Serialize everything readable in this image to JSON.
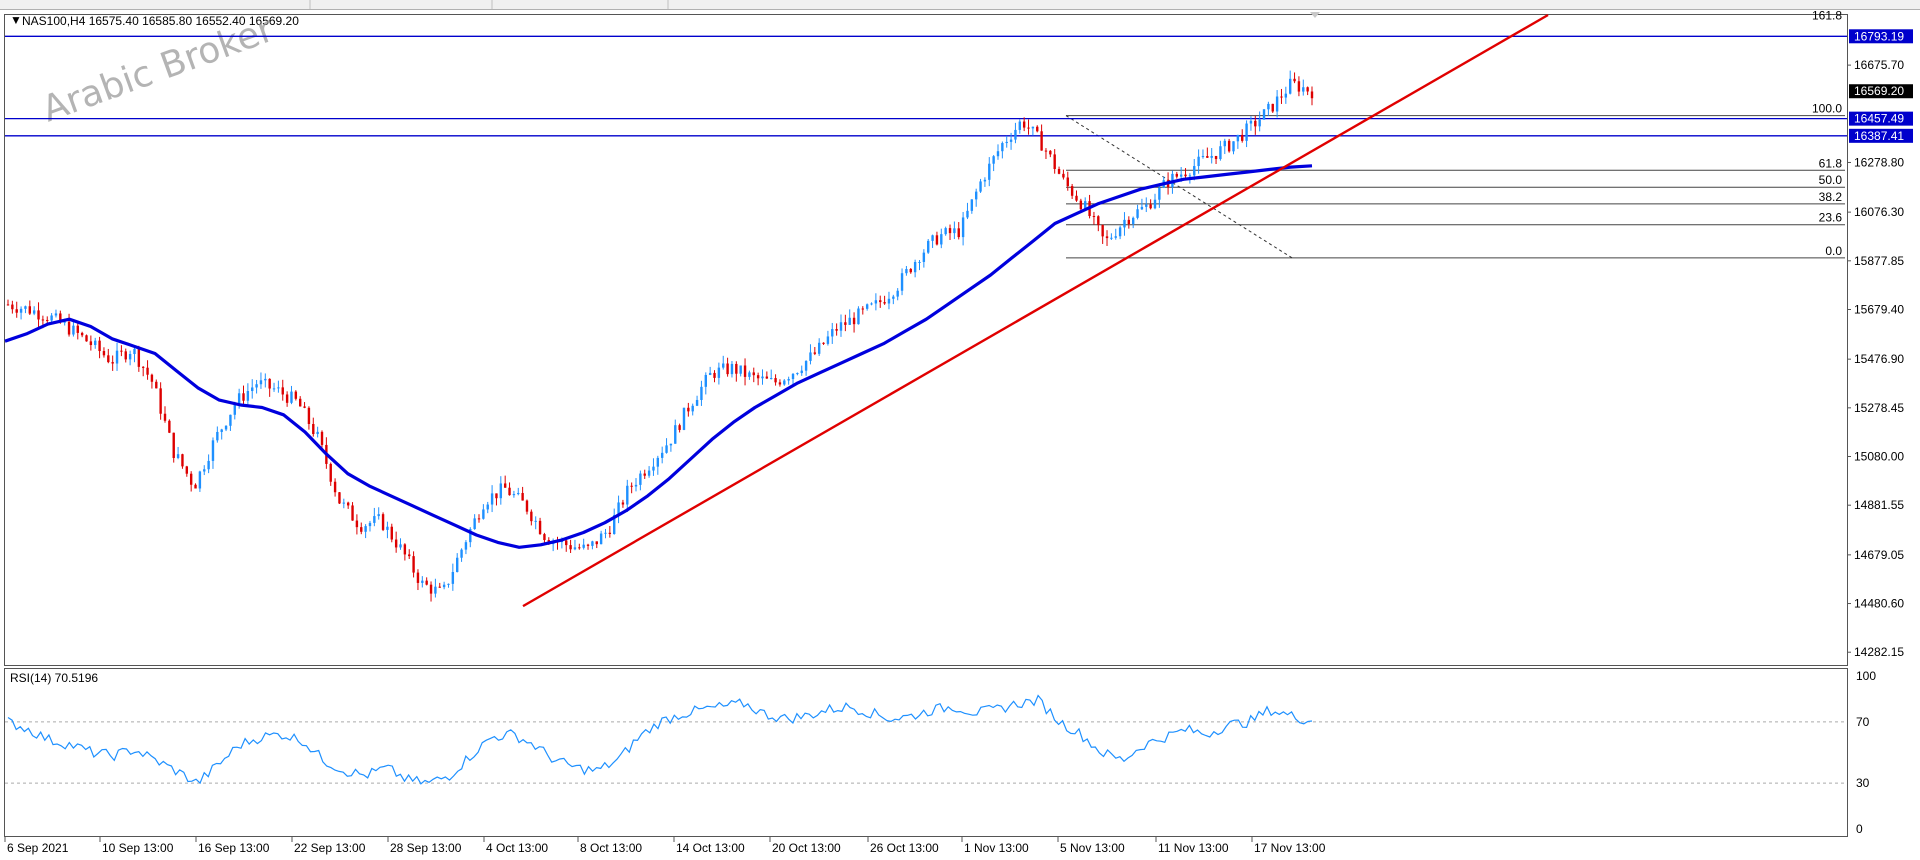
{
  "header": {
    "symbol_line": "NAS100,H4  16575.40 16585.80 16552.40 16569.20",
    "watermark": "Arabic Broker"
  },
  "price_axis": {
    "ticks": [
      "16675.70",
      "16278.80",
      "16076.30",
      "15877.85",
      "15679.40",
      "15476.90",
      "15278.45",
      "15080.00",
      "14881.55",
      "14679.05",
      "14480.60",
      "14282.15"
    ],
    "labels": [
      {
        "value": "16793.19",
        "price": 16793.19,
        "color": "#0000cc"
      },
      {
        "value": "16569.20",
        "price": 16569.2,
        "color": "#000000"
      },
      {
        "value": "16457.49",
        "price": 16457.49,
        "color": "#0000cc"
      },
      {
        "value": "16387.41",
        "price": 16387.41,
        "color": "#0000cc"
      }
    ],
    "range": [
      14230,
      16880
    ]
  },
  "fibonacci": {
    "levels": [
      {
        "label": "161.8",
        "price": 16850
      },
      {
        "label": "100.0",
        "price": 16470
      },
      {
        "label": "61.8",
        "price": 16247
      },
      {
        "label": "50.0",
        "price": 16178
      },
      {
        "label": "38.2",
        "price": 16110
      },
      {
        "label": "23.6",
        "price": 16025
      },
      {
        "label": "0.0",
        "price": 15890
      }
    ],
    "x_start_label": "5 Nov 13:00"
  },
  "horizontal_lines": [
    16793.19,
    16457.49,
    16387.41
  ],
  "rsi": {
    "label": "RSI(14) 70.5196",
    "axis": [
      "100",
      "70",
      "30",
      "0"
    ],
    "levels": [
      70,
      30
    ]
  },
  "time_axis": [
    "6 Sep 2021",
    "10 Sep 13:00",
    "16 Sep 13:00",
    "22 Sep 13:00",
    "28 Sep 13:00",
    "4 Oct 13:00",
    "8 Oct 13:00",
    "14 Oct 13:00",
    "20 Oct 13:00",
    "26 Oct 13:00",
    "1 Nov 13:00",
    "5 Nov 13:00",
    "11 Nov 13:00",
    "17 Nov 13:00"
  ],
  "colors": {
    "up": "#1e90ff",
    "down": "#dd0000",
    "ma": "#0000dd",
    "trend": "#e00000",
    "rsi": "#1e90ff",
    "hline": "#0000cc"
  },
  "chart_data": {
    "type": "line",
    "series": [
      {
        "name": "NAS100,H4",
        "values": [
          15700,
          15680,
          15650,
          15600,
          15540,
          15470,
          15520,
          15380,
          15100,
          14960,
          15150,
          15300,
          15380,
          15350,
          15300,
          15150,
          14900,
          14800,
          14820,
          14700,
          14560,
          14520,
          14720,
          14900,
          14950,
          14880,
          14750,
          14720,
          14700,
          14780,
          14950,
          15050,
          15150,
          15300,
          15420,
          15440,
          15400,
          15380,
          15430,
          15500,
          15600,
          15650,
          15700,
          15780,
          15900,
          15980,
          16000,
          16200,
          16350,
          16450,
          16350,
          16200,
          16100,
          15950,
          16050,
          16100,
          16200,
          16250,
          16300,
          16350,
          16420,
          16500,
          16600,
          16570
        ]
      },
      {
        "name": "MA",
        "values": [
          15550,
          15580,
          15620,
          15640,
          15610,
          15560,
          15530,
          15500,
          15430,
          15360,
          15310,
          15290,
          15280,
          15250,
          15180,
          15090,
          15010,
          14960,
          14920,
          14880,
          14840,
          14800,
          14760,
          14730,
          14710,
          14720,
          14740,
          14770,
          14810,
          14860,
          14920,
          14990,
          15070,
          15150,
          15220,
          15280,
          15330,
          15380,
          15420,
          15460,
          15500,
          15540,
          15590,
          15640,
          15700,
          15760,
          15820,
          15890,
          15960,
          16030,
          16070,
          16110,
          16140,
          16170,
          16190,
          16210,
          16220,
          16230,
          16240,
          16250,
          16260,
          16265
        ]
      },
      {
        "name": "RSI(14)",
        "values": [
          70,
          65,
          58,
          55,
          50,
          48,
          52,
          45,
          38,
          30,
          42,
          55,
          60,
          62,
          58,
          45,
          38,
          35,
          40,
          32,
          30,
          35,
          48,
          60,
          62,
          55,
          45,
          40,
          38,
          45,
          60,
          70,
          75,
          78,
          80,
          82,
          75,
          72,
          74,
          78,
          80,
          76,
          72,
          74,
          78,
          80,
          76,
          78,
          82,
          84,
          70,
          62,
          50,
          45,
          55,
          60,
          65,
          62,
          68,
          70,
          78,
          74,
          70.5
        ]
      }
    ]
  }
}
